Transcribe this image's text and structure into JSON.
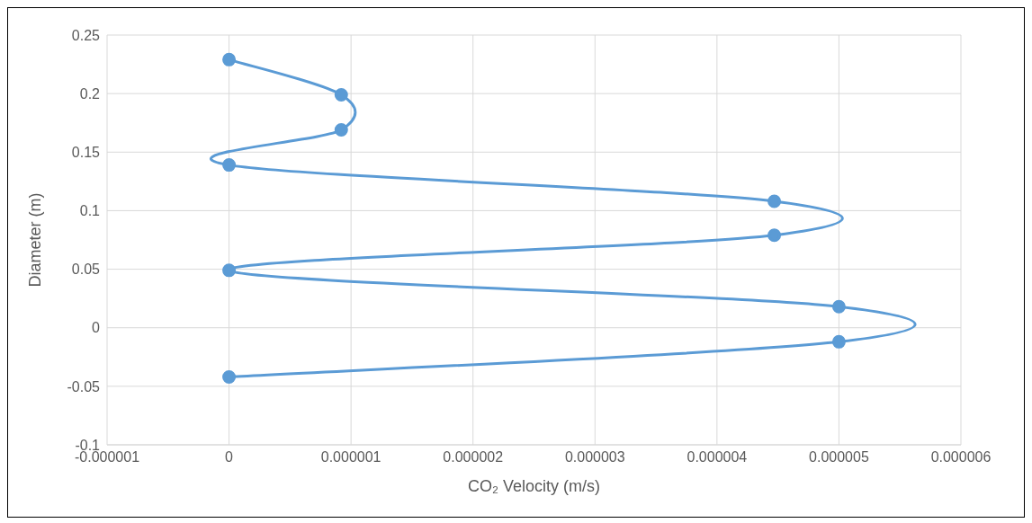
{
  "chart_data": {
    "type": "line",
    "xlabel": "CO₂ Velocity (m/s)",
    "ylabel": "Diameter (m)",
    "series": [
      {
        "color": "#5b9bd5",
        "x": [
          0,
          9.2e-07,
          9.2e-07,
          0,
          4.47e-06,
          4.47e-06,
          0,
          5e-06,
          5e-06,
          0
        ],
        "values": [
          0.229,
          0.199,
          0.169,
          0.139,
          0.108,
          0.079,
          0.049,
          0.018,
          -0.012,
          -0.042
        ]
      }
    ],
    "xlim": [
      -1e-06,
      6e-06
    ],
    "xticks": [
      {
        "value": -1e-06,
        "label": "-0.000001"
      },
      0,
      {
        "value": 1e-06,
        "label": "0.000001"
      },
      {
        "value": 2e-06,
        "label": "0.000002"
      },
      {
        "value": 3e-06,
        "label": "0.000003"
      },
      {
        "value": 4e-06,
        "label": "0.000004"
      },
      {
        "value": 5e-06,
        "label": "0.000005"
      },
      {
        "value": 6e-06,
        "label": "0.000006"
      }
    ],
    "ylim": [
      -0.1,
      0.25
    ],
    "yticks": [
      -0.1,
      -0.05,
      0,
      0.05,
      0.1,
      0.15,
      0.2,
      0.25
    ],
    "grid": true,
    "marker": "circle",
    "line_style": "solid"
  }
}
